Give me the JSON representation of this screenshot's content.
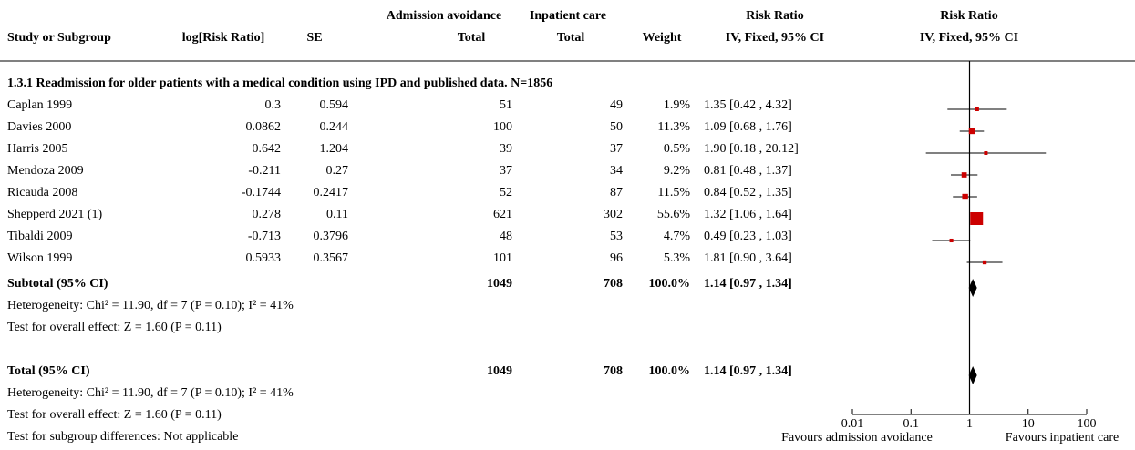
{
  "table": {
    "headers_top": [
      "Admission avoidance",
      "Inpatient care",
      "Risk Ratio",
      "Risk Ratio"
    ],
    "headers": [
      "Study or Subgroup",
      "log[Risk Ratio]",
      "SE",
      "Total",
      "Total",
      "Weight",
      "IV, Fixed, 95% CI",
      "IV, Fixed, 95% CI"
    ],
    "group_title": "1.3.1 Readmission for older patients with a medical condition using IPD and published data. N=1856",
    "rows": [
      [
        "Caplan 1999",
        0.3,
        0.594,
        51,
        49
      ],
      [
        "Davies 2000",
        0.0862,
        0.244,
        100,
        50
      ],
      [
        "Harris 2005",
        0.642,
        1.204,
        39,
        37
      ],
      [
        "Mendoza 2009",
        -0.211,
        0.27,
        37,
        34
      ],
      [
        "Ricauda 2008",
        -0.1744,
        0.2417,
        52,
        87
      ],
      [
        "Shepperd 2021 (1)",
        0.278,
        0.11,
        621,
        302
      ],
      [
        "Tibaldi 2009",
        -0.713,
        0.3796,
        48,
        53
      ],
      [
        "Wilson 1999",
        0.5933,
        0.3567,
        101,
        96
      ]
    ],
    "summary_rows": [
      {
        "label": "Subtotal (95% CI)",
        "adm_total": 1049,
        "inp_total": 708,
        "weight": "100.0%",
        "notes": [
          "Heterogeneity: Chi² = 11.90, df = 7 (P = 0.10); I² = 41%",
          "Test for overall effect: Z = 1.60 (P = 0.11)"
        ]
      },
      {
        "label": "Total (95% CI)",
        "adm_total": 1049,
        "inp_total": 708,
        "weight": "100.0%",
        "notes": [
          "Heterogeneity: Chi² = 11.90, df = 7 (P = 0.10); I² = 41%",
          "Test for overall effect: Z = 1.60 (P = 0.11)",
          "Test for subgroup differences: Not applicable"
        ]
      }
    ]
  },
  "chart_data": {
    "type": "forest",
    "log": true,
    "color": "#cc0000",
    "estimates": [
      1.35,
      1.09,
      1.9,
      0.81,
      0.84,
      1.32,
      0.49,
      1.81
    ],
    "lower": [
      0.42,
      0.68,
      0.18,
      0.48,
      0.52,
      1.06,
      0.23,
      0.9
    ],
    "upper": [
      4.32,
      1.76,
      20.12,
      1.37,
      1.35,
      1.64,
      1.03,
      3.64
    ],
    "value_labels": [
      "1.35 [0.42 , 4.32]",
      "1.09 [0.68 , 1.76]",
      "1.90 [0.18 , 20.12]",
      "0.81 [0.48 , 1.37]",
      "0.84 [0.52 , 1.35]",
      "1.32 [1.06 , 1.64]",
      "0.49 [0.23 , 1.03]",
      "1.81 [0.90 , 3.64]"
    ],
    "weights": [
      1.9,
      11.3,
      0.5,
      9.2,
      11.5,
      55.6,
      4.7,
      5.3
    ],
    "weight_labels": [
      "1.9%",
      "11.3%",
      "0.5%",
      "9.2%",
      "11.5%",
      "55.6%",
      "4.7%",
      "5.3%"
    ],
    "summaries": [
      {
        "estimate": 1.14,
        "lower": 0.97,
        "upper": 1.34,
        "value_label": "1.14 [0.97 , 1.34]"
      },
      {
        "estimate": 1.14,
        "lower": 0.97,
        "upper": 1.34,
        "value_label": "1.14 [0.97 , 1.34]"
      }
    ],
    "xlim": [
      0.01,
      100
    ],
    "xticks": [
      0.01,
      0.1,
      1,
      10,
      100
    ],
    "reference": 1,
    "x_label_left": "Favours admission avoidance",
    "x_label_right": "Favours inpatient care"
  }
}
